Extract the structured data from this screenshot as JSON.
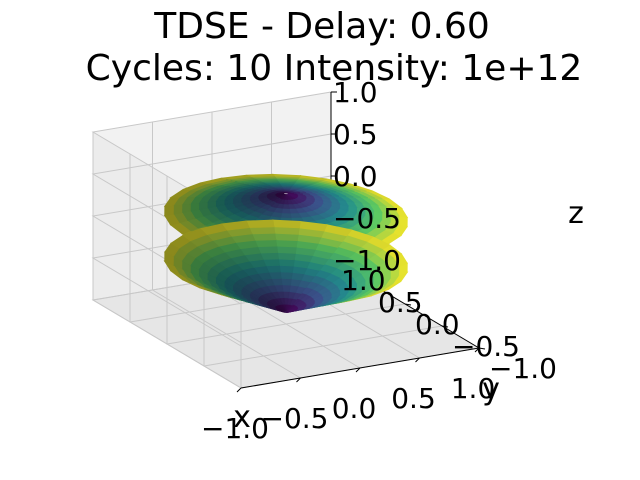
{
  "chart_data": {
    "type": "surface3d",
    "title_line1": "TDSE - Delay: 0.60",
    "title_line2": "Cycles:  10    Intensity: 1e+12",
    "xlabel": "x",
    "ylabel": "y",
    "zlabel": "z",
    "xlim": [
      -1.0,
      1.0
    ],
    "ylim": [
      -1.0,
      1.0
    ],
    "zlim": [
      -1.0,
      1.0
    ],
    "x_ticks": [
      "−1.0",
      "−0.5",
      "0.0",
      "0.5",
      "1.0"
    ],
    "y_ticks": [
      "−1.0",
      "−0.5",
      "0.0",
      "0.5",
      "1.0"
    ],
    "z_ticks": [
      "−1.0",
      "−0.5",
      "0.0",
      "0.5",
      "1.0"
    ],
    "grid": true,
    "colormap": [
      "#440154",
      "#3b528b",
      "#21908d",
      "#5dc963",
      "#fde725"
    ]
  }
}
